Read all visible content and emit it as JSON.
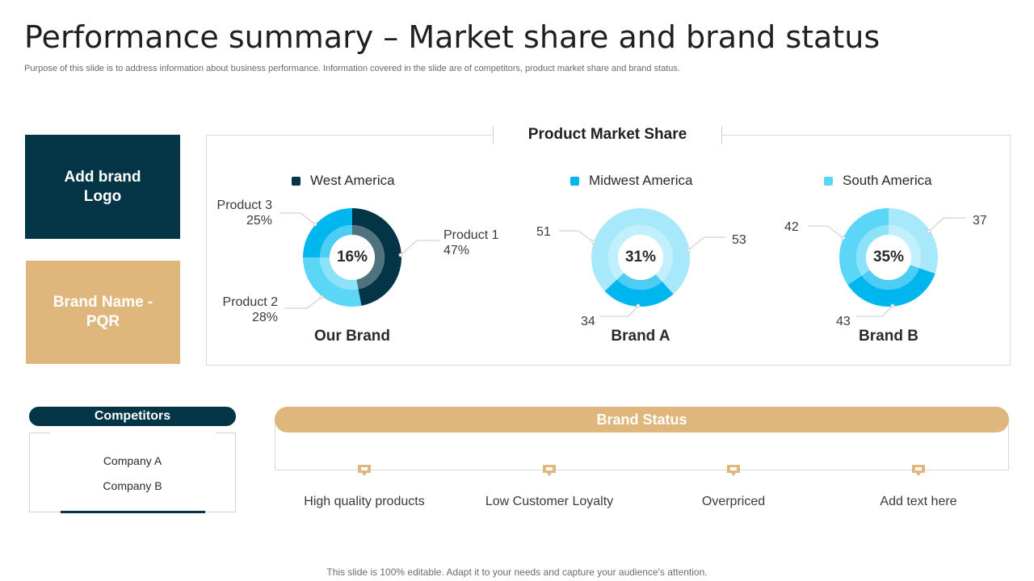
{
  "title": "Performance summary – Market share and brand status",
  "subtitle": "Purpose of this slide is to address information about business performance. Information covered in the slide are of competitors, product market share and brand status.",
  "brand_logo_label": "Add brand Logo",
  "brand_name_label": "Brand Name - PQR",
  "market_share": {
    "title": "Product Market Share"
  },
  "colors": {
    "dark_navy": "#033547",
    "sky_blue": "#00b6ef",
    "light_cyan": "#5bd6f7",
    "pale_cyan": "#a7e8fb",
    "gold": "#dfb67c"
  },
  "chart_data": [
    {
      "type": "pie",
      "title": "Our Brand",
      "legend": "West America",
      "center_label": "16%",
      "slices": [
        {
          "label": "Product 1",
          "value": 47,
          "display": "47%",
          "color": "#033547"
        },
        {
          "label": "Product 2",
          "value": 28,
          "display": "28%",
          "color": "#5bd6f7"
        },
        {
          "label": "Product 3",
          "value": 25,
          "display": "25%",
          "color": "#00b6ef"
        }
      ]
    },
    {
      "type": "pie",
      "title": "Brand A",
      "legend": "Midwest America",
      "center_label": "31%",
      "slices": [
        {
          "label": "",
          "value": 53,
          "display": "53",
          "color": "#a7e8fb"
        },
        {
          "label": "",
          "value": 34,
          "display": "34",
          "color": "#00b6ef"
        },
        {
          "label": "",
          "value": 51,
          "display": "51",
          "color": "#a7e8fb"
        }
      ]
    },
    {
      "type": "pie",
      "title": "Brand B",
      "legend": "South America",
      "center_label": "35%",
      "slices": [
        {
          "label": "",
          "value": 37,
          "display": "37",
          "color": "#a7e8fb"
        },
        {
          "label": "",
          "value": 43,
          "display": "43",
          "color": "#00b6ef"
        },
        {
          "label": "",
          "value": 42,
          "display": "42",
          "color": "#5bd6f7"
        }
      ]
    }
  ],
  "competitors": {
    "title": "Competitors",
    "items": [
      "Company A",
      "Company B"
    ]
  },
  "brand_status": {
    "title": "Brand Status",
    "items": [
      "High quality products",
      "Low Customer Loyalty",
      "Overpriced",
      "Add text here"
    ]
  },
  "footer": "This slide is 100% editable. Adapt it to your needs and capture your audience's attention."
}
